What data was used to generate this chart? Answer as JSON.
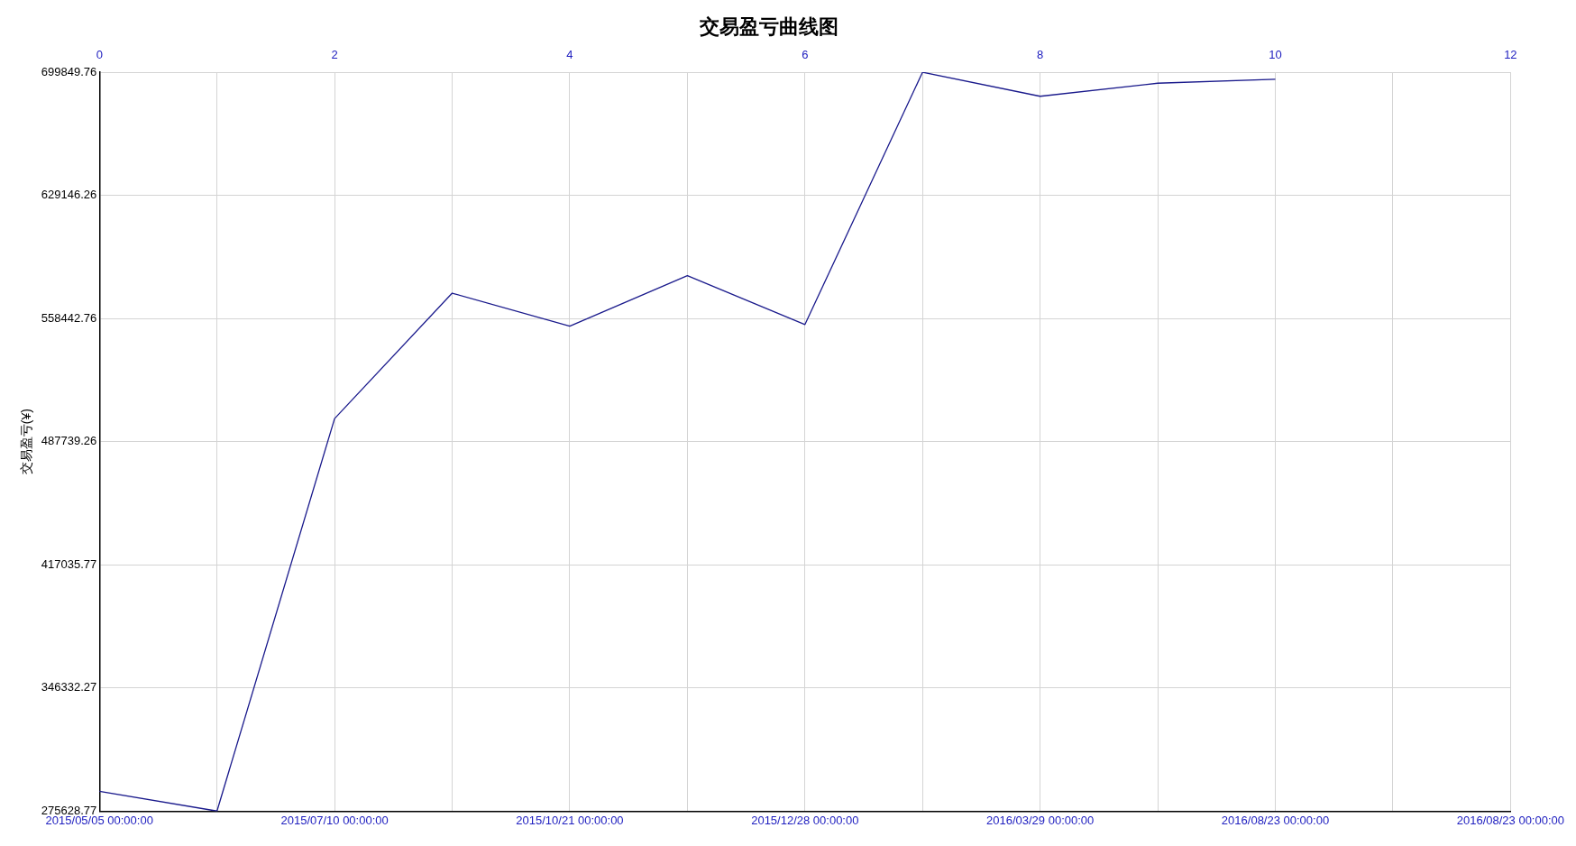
{
  "chart_data": {
    "type": "line",
    "title": "交易盈亏曲线图",
    "ylabel": "交易盈亏(¥)",
    "categories": [
      "2015/05/05 00:00:00",
      null,
      "2015/07/10 00:00:00",
      null,
      "2015/10/21 00:00:00",
      null,
      "2015/12/28 00:00:00",
      null,
      "2016/03/29 00:00:00",
      null,
      "2016/08/23 00:00:00",
      null,
      "2016/08/23 00:00:00"
    ],
    "series": [
      {
        "color": "#1a1a8c",
        "values": [
          287000,
          275700,
          501000,
          573000,
          554000,
          583000,
          555000,
          699800,
          686000,
          693500,
          695800,
          null,
          null
        ]
      }
    ],
    "x2lim": [
      0,
      12
    ],
    "x2ticks": [
      0,
      2,
      4,
      6,
      8,
      10,
      12
    ],
    "ylim": [
      275628.77,
      699849.76
    ],
    "yticks": [
      275628.77,
      346332.27,
      417035.77,
      487739.26,
      558442.76,
      629146.26,
      699849.76
    ],
    "grid": true,
    "legend": false,
    "marker": "none",
    "line_style": "solid"
  }
}
